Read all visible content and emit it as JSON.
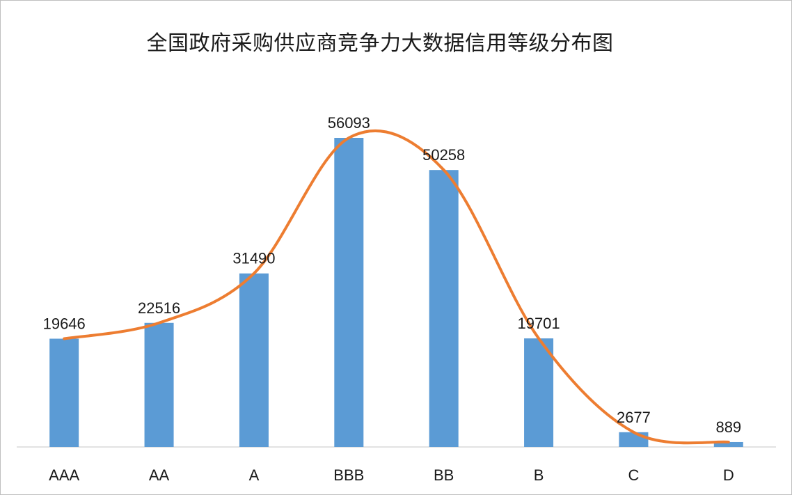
{
  "chart_data": {
    "type": "bar",
    "title": "全国政府采购供应商竞争力大数据信用等级分布图",
    "categories": [
      "AAA",
      "AA",
      "A",
      "BBB",
      "BB",
      "B",
      "C",
      "D"
    ],
    "values": [
      19646,
      22516,
      31490,
      56093,
      50258,
      19701,
      2677,
      889
    ],
    "trendline": "smoothed-line",
    "xlabel": "",
    "ylabel": "",
    "y_axis_visible": false,
    "grid": false,
    "legend": "none",
    "colors": {
      "bar": "#5b9bd5",
      "line": "#ed7d31",
      "axis": "#d9d9d9"
    }
  }
}
